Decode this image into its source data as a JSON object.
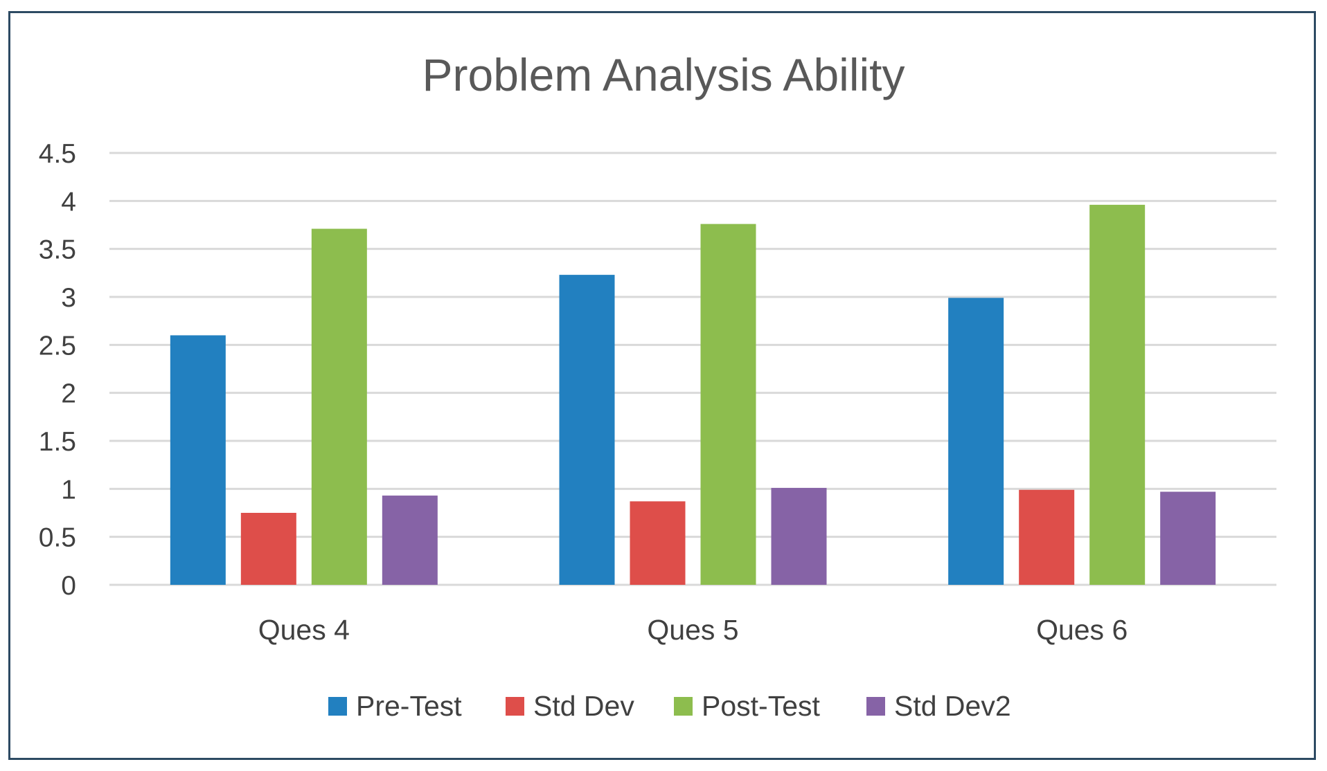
{
  "chart_data": {
    "type": "bar",
    "title": "Problem Analysis Ability",
    "categories": [
      "Ques 4",
      "Ques 5",
      "Ques 6"
    ],
    "series": [
      {
        "name": "Pre-Test",
        "color": "#2280c0",
        "values": [
          2.6,
          3.23,
          2.99
        ]
      },
      {
        "name": "Std Dev",
        "color": "#de4e4a",
        "values": [
          0.75,
          0.87,
          0.99
        ]
      },
      {
        "name": "Post-Test",
        "color": "#8dbd4e",
        "values": [
          3.71,
          3.76,
          3.96
        ]
      },
      {
        "name": "Std Dev2",
        "color": "#8663a6",
        "values": [
          0.93,
          1.01,
          0.97
        ]
      }
    ],
    "ylim": [
      0,
      4.5
    ],
    "yticks": [
      "0",
      "0.5",
      "1",
      "1.5",
      "2",
      "2.5",
      "3",
      "3.5",
      "4",
      "4.5"
    ],
    "xlabel": "",
    "ylabel": "",
    "grid": true,
    "legend_position": "bottom"
  }
}
